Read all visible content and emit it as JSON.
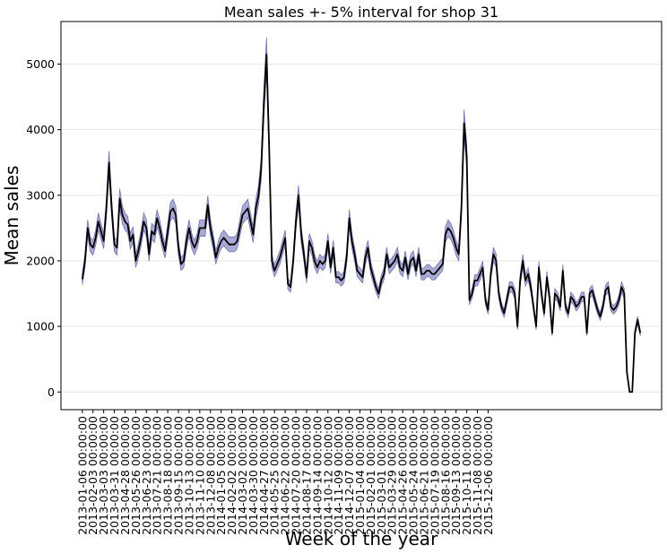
{
  "chart_data": {
    "type": "line",
    "title": "Mean sales +- 5% interval for shop 31",
    "xlabel": "Week of the year",
    "ylabel": "Mean sales",
    "ylim": [
      -270,
      5650
    ],
    "yticks": [
      0,
      1000,
      2000,
      3000,
      4000,
      5000
    ],
    "grid": "horizontal",
    "band_fraction": 0.05,
    "colors": {
      "line": "#000000",
      "band": "#aaaad6",
      "band_edge": "#7474ad",
      "grid": "#e6e6e6"
    },
    "xtick_labels": [
      "2013-01-06 00:00:00",
      "2013-02-03 00:00:00",
      "2013-03-03 00:00:00",
      "2013-03-31 00:00:00",
      "2013-04-28 00:00:00",
      "2013-05-26 00:00:00",
      "2013-06-23 00:00:00",
      "2013-07-21 00:00:00",
      "2013-08-18 00:00:00",
      "2013-09-15 00:00:00",
      "2013-10-13 00:00:00",
      "2013-11-10 00:00:00",
      "2013-12-08 00:00:00",
      "2014-01-05 00:00:00",
      "2014-02-02 00:00:00",
      "2014-03-02 00:00:00",
      "2014-03-30 00:00:00",
      "2014-04-27 00:00:00",
      "2014-05-25 00:00:00",
      "2014-06-22 00:00:00",
      "2014-07-20 00:00:00",
      "2014-08-17 00:00:00",
      "2014-09-14 00:00:00",
      "2014-10-12 00:00:00",
      "2014-11-09 00:00:00",
      "2014-12-07 00:00:00",
      "2015-01-04 00:00:00",
      "2015-02-01 00:00:00",
      "2015-03-01 00:00:00",
      "2015-03-29 00:00:00",
      "2015-04-26 00:00:00",
      "2015-05-24 00:00:00",
      "2015-06-21 00:00:00",
      "2015-07-19 00:00:00",
      "2015-08-16 00:00:00",
      "2015-09-13 00:00:00",
      "2015-10-11 00:00:00",
      "2015-11-08 00:00:00",
      "2015-12-06 00:00:00"
    ],
    "weeks_from": "2013-01-06",
    "series": [
      {
        "name": "",
        "values": [
          1720,
          2000,
          2500,
          2250,
          2200,
          2350,
          2600,
          2450,
          2300,
          2800,
          3500,
          2800,
          2250,
          2200,
          2950,
          2700,
          2600,
          2550,
          2300,
          2400,
          2000,
          2150,
          2350,
          2600,
          2500,
          2100,
          2450,
          2400,
          2650,
          2500,
          2300,
          2150,
          2450,
          2750,
          2800,
          2700,
          2200,
          1950,
          2000,
          2300,
          2500,
          2300,
          2200,
          2300,
          2500,
          2500,
          2500,
          2850,
          2500,
          2300,
          2050,
          2200,
          2300,
          2350,
          2300,
          2250,
          2250,
          2250,
          2300,
          2500,
          2700,
          2750,
          2800,
          2600,
          2400,
          2800,
          3000,
          3400,
          4400,
          5150,
          3700,
          2000,
          1850,
          1950,
          2050,
          2200,
          2350,
          1650,
          1600,
          2000,
          2600,
          3000,
          2400,
          2100,
          1750,
          2300,
          2200,
          2000,
          1900,
          2000,
          1950,
          2000,
          2300,
          1900,
          2200,
          1750,
          1750,
          1700,
          1750,
          2050,
          2650,
          2300,
          2100,
          1850,
          1800,
          1750,
          2050,
          2200,
          1900,
          1750,
          1600,
          1500,
          1700,
          1800,
          2100,
          1900,
          1950,
          2000,
          2100,
          1900,
          1850,
          2050,
          1800,
          2000,
          2050,
          1850,
          2100,
          1800,
          1800,
          1850,
          1850,
          1800,
          1800,
          1850,
          1900,
          1950,
          2400,
          2500,
          2450,
          2350,
          2200,
          2100,
          2800,
          4100,
          3600,
          1400,
          1500,
          1700,
          1700,
          1800,
          1900,
          1400,
          1250,
          1800,
          2100,
          2000,
          1500,
          1300,
          1200,
          1400,
          1600,
          1600,
          1500,
          1000,
          1700,
          2000,
          1700,
          1800,
          1600,
          1300,
          1000,
          1900,
          1500,
          1200,
          1750,
          1450,
          900,
          1500,
          1450,
          1300,
          1850,
          1300,
          1200,
          1450,
          1400,
          1300,
          1350,
          1450,
          1450,
          900,
          1500,
          1550,
          1400,
          1250,
          1150,
          1300,
          1550,
          1600,
          1300,
          1250,
          1300,
          1400,
          1600,
          1500,
          300,
          0,
          0,
          900,
          1100,
          900
        ]
      }
    ]
  }
}
